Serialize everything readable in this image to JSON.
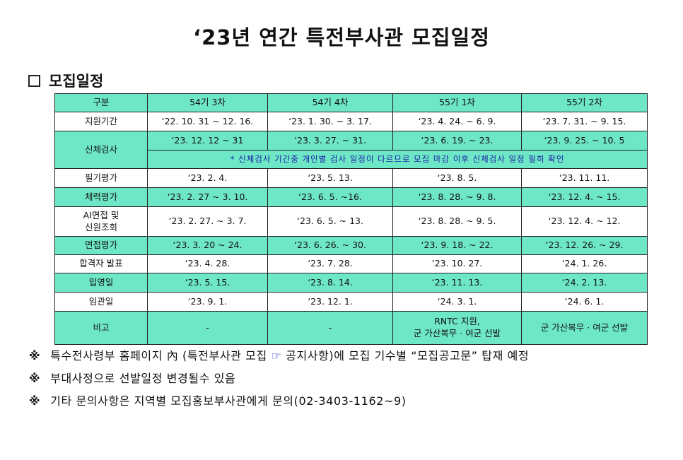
{
  "title": "‘23년 연간 특전부사관 모집일정",
  "section_title": "모집일정",
  "table": {
    "headers": [
      "구분",
      "54기 3차",
      "54기 4차",
      "55기 1차",
      "55기 2차"
    ],
    "rows": {
      "apply": {
        "label": "지원기간",
        "cells": [
          "‘22. 10. 31 ~ 12. 16.",
          "‘23. 1. 30. ~ 3. 17.",
          "‘23. 4. 24. ~ 6. 9.",
          "‘23. 7. 31. ~ 9. 15."
        ]
      },
      "physical_exam": {
        "label": "신체검사",
        "cells": [
          "‘23. 12. 12 ~ 31",
          "‘23. 3. 27. ~ 31.",
          "‘23. 6. 19. ~ 23.",
          "‘23. 9. 25. ~ 10. 5"
        ],
        "notice": "* 신체검사 기간중 개인별 검사 일정이 다르므로 모집 마감 이후 신체검사 일정 필히 확인"
      },
      "written": {
        "label": "필기평가",
        "cells": [
          "‘23. 2. 4.",
          "‘23. 5. 13.",
          "‘23. 8. 5.",
          "‘23. 11. 11."
        ]
      },
      "fitness": {
        "label": "체력평가",
        "cells": [
          "‘23. 2. 27 ~ 3. 10.",
          "‘23. 6. 5. ~16.",
          "‘23. 8. 28. ~ 9. 8.",
          "‘23. 12. 4. ~ 15."
        ]
      },
      "ai_interview": {
        "label_line1": "AI면접 및",
        "label_line2": "신원조회",
        "cells": [
          "‘23. 2. 27. ~ 3. 7.",
          "‘23. 6. 5. ~ 13.",
          "‘23. 8. 28. ~ 9. 5.",
          "‘23. 12. 4. ~ 12."
        ]
      },
      "interview": {
        "label": "면접평가",
        "cells": [
          "‘23. 3. 20 ~ 24.",
          "‘23. 6. 26. ~ 30.",
          "‘23. 9. 18. ~ 22.",
          "‘23. 12. 26. ~ 29."
        ]
      },
      "announce": {
        "label": "합격자 발표",
        "cells": [
          "‘23. 4. 28.",
          "‘23. 7. 28.",
          "‘23. 10. 27.",
          "‘24. 1. 26."
        ]
      },
      "enlist": {
        "label": "입영일",
        "cells": [
          "‘23. 5. 15.",
          "‘23. 8. 14.",
          "‘23. 11. 13.",
          "‘24. 2. 13."
        ]
      },
      "commission": {
        "label": "임관일",
        "cells": [
          "‘23. 9. 1.",
          "‘23. 12. 1.",
          "‘24. 3. 1.",
          "‘24. 6. 1."
        ]
      },
      "remarks": {
        "label": "비고",
        "cell1": "-",
        "cell2": "-",
        "cell3_line1": "RNTC 지원,",
        "cell3_line2": "군 가산복무 · 여군 선발",
        "cell4": "군 가산복무 · 여군 선발"
      }
    }
  },
  "notes": {
    "mark": "※",
    "n1_before": "특수전사령부 홈페이지 內 (특전부사관 모집",
    "n1_icon": "☞",
    "n1_after": "공지사항)에 모집 기수별 “모집공고문” 탑재 예정",
    "n2": "부대사정으로 선발일정 변경될수 있음",
    "n3": "기타 문의사항은 지역별 모집홍보부사관에게 문의(02-3403-1162~9)"
  },
  "colors": {
    "row_highlight": "#6ee7c6",
    "notice_text": "#1a1aa6"
  }
}
